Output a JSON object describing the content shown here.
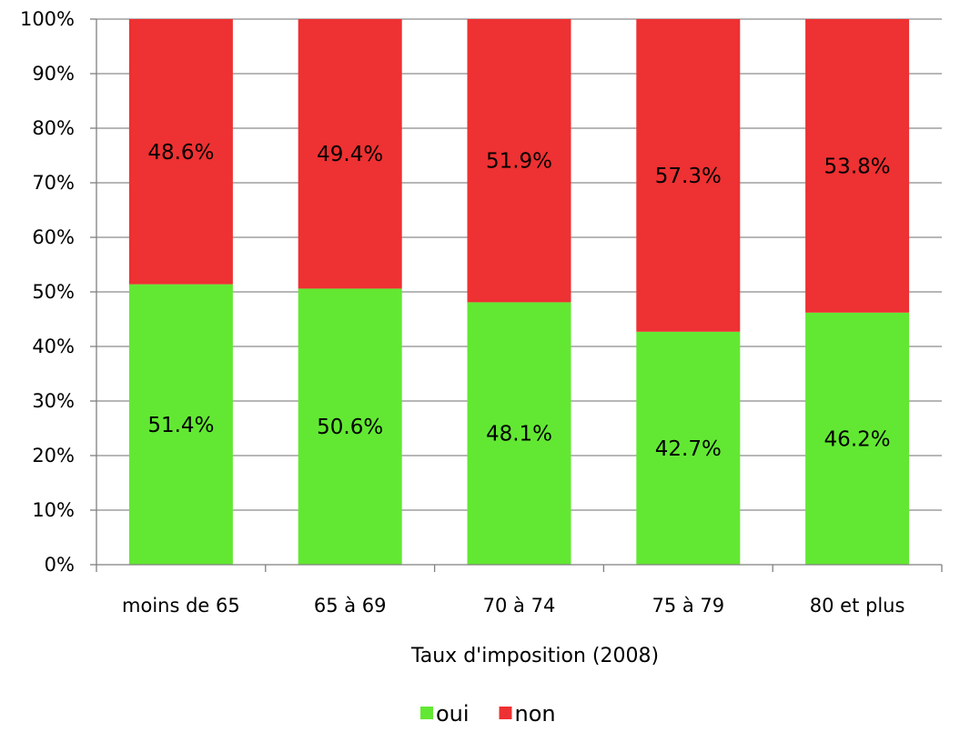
{
  "chart_data": {
    "type": "bar",
    "stacked": "percent",
    "categories": [
      "moins de 65",
      "65 à 69",
      "70 à 74",
      "75 à 79",
      "80 et plus"
    ],
    "series": [
      {
        "name": "oui",
        "color": "#62e833",
        "values": [
          51.4,
          50.6,
          48.1,
          42.7,
          46.2
        ],
        "labels": [
          "51.4%",
          "50.6%",
          "48.1%",
          "42.7%",
          "46.2%"
        ]
      },
      {
        "name": "non",
        "color": "#ee3132",
        "values": [
          48.6,
          49.4,
          51.9,
          57.3,
          53.8
        ],
        "labels": [
          "48.6%",
          "49.4%",
          "51.9%",
          "57.3%",
          "53.8%"
        ]
      }
    ],
    "xlabel": "Taux d'imposition (2008)",
    "ylabel": "",
    "ylim": [
      0,
      100
    ],
    "yticks": [
      0,
      10,
      20,
      30,
      40,
      50,
      60,
      70,
      80,
      90,
      100
    ],
    "ytick_labels": [
      "0%",
      "10%",
      "20%",
      "30%",
      "40%",
      "50%",
      "60%",
      "70%",
      "80%",
      "90%",
      "100%"
    ],
    "grid": true,
    "legend_position": "bottom"
  },
  "style": {
    "grid_color": "#8c8c8c",
    "axis_color": "#7f7f7f",
    "background": "#ffffff"
  }
}
